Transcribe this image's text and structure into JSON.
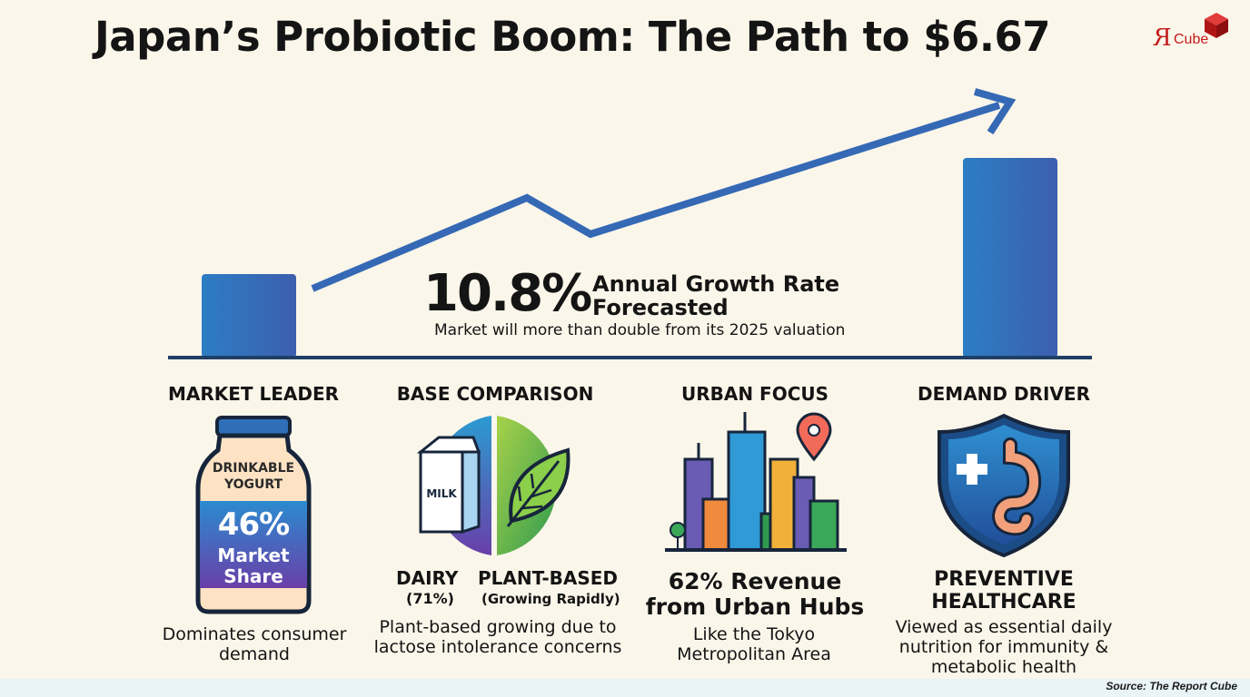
{
  "title": "Japan’s Probiotic Boom: The Path to $6.67",
  "logo": {
    "r": "R",
    "cube": "Cube"
  },
  "growth": {
    "value": "10.8%",
    "label": "Annual Growth Rate Forecasted",
    "subtitle": "Market will more than double from its 2025 valuation"
  },
  "sections": {
    "market_leader": {
      "heading": "MARKET LEADER",
      "bottle_line1": "DRINKABLE",
      "bottle_line2": "YOGURT",
      "share_value": "46%",
      "share_line1": "Market",
      "share_line2": "Share",
      "description": "Dominates consumer demand"
    },
    "base_comparison": {
      "heading": "BASE COMPARISON",
      "carton_label": "MILK",
      "dairy_label": "DAIRY",
      "dairy_share": "(71%)",
      "plant_label": "PLANT-BASED",
      "plant_note": "(Growing Rapidly)",
      "description": "Plant-based growing due to lactose intolerance concerns"
    },
    "urban_focus": {
      "heading": "URBAN FOCUS",
      "highlight": "62% Revenue from Urban Hubs",
      "description": "Like the Tokyo Metropolitan Area"
    },
    "demand_driver": {
      "heading": "DEMAND DRIVER",
      "highlight": "PREVENTIVE HEALTHCARE",
      "description": "Viewed as essential daily nutrition for immunity & metabolic health"
    }
  },
  "source": "Source: The Report Cube",
  "colors": {
    "accent_blue": "#2f6fb8",
    "brand_red": "#c41b1b",
    "background": "#fbf6ea"
  }
}
